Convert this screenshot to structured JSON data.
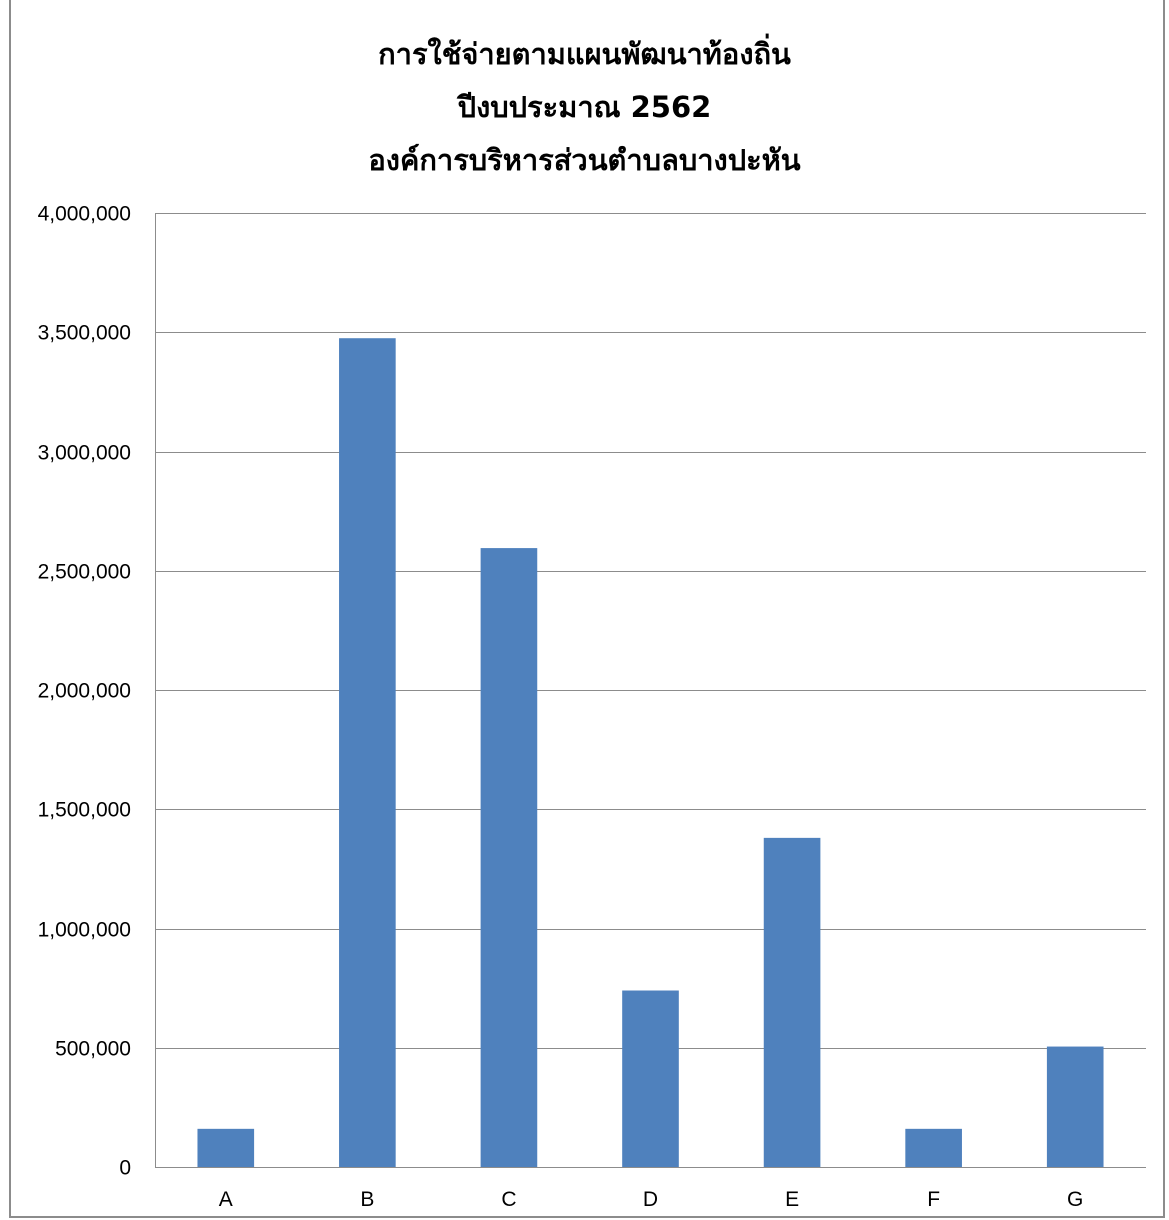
{
  "chart_data": {
    "type": "bar",
    "title": "การใช้จ่ายตามแผนพัฒนาท้องถิ่น",
    "title_lines": [
      "การใช้จ่ายตามแผนพัฒนาท้องถิ่น",
      "ปีงบประมาณ 2562",
      "องค์การบริหารส่วนตำบลบางปะหัน"
    ],
    "categories": [
      "A",
      "B",
      "C",
      "D",
      "E",
      "F",
      "G"
    ],
    "values": [
      160000,
      3475000,
      2595000,
      740000,
      1380000,
      160000,
      505000
    ],
    "ylim": [
      0,
      4000000
    ],
    "yticks": [
      0,
      500000,
      1000000,
      1500000,
      2000000,
      2500000,
      3000000,
      3500000,
      4000000
    ],
    "ytick_labels": [
      "0",
      "500,000",
      "1,000,000",
      "1,500,000",
      "2,000,000",
      "2,500,000",
      "3,000,000",
      "3,500,000",
      "4,000,000"
    ],
    "xlabel": "",
    "ylabel": "",
    "grid": true,
    "legend": "none",
    "bar_color": "#4f81bd"
  }
}
